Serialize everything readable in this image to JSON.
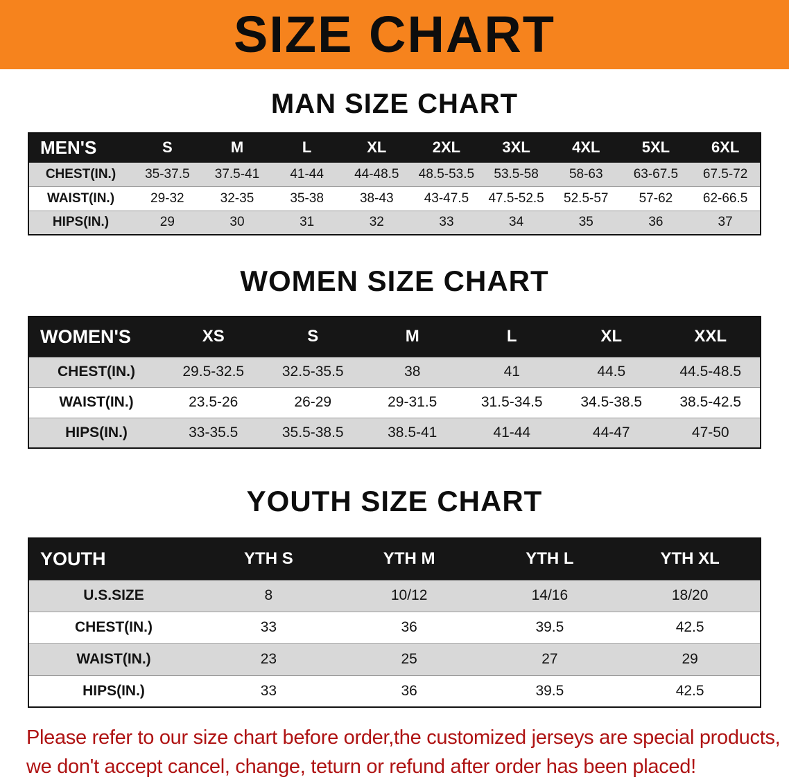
{
  "banner": {
    "title": "SIZE CHART"
  },
  "colors": {
    "banner_bg": "#F6831D",
    "table_header_bg": "#161616",
    "table_row_gray": "#d8d8d8",
    "disclaimer_red": "#AF1313"
  },
  "sections": [
    {
      "heading": "MAN SIZE CHART",
      "table": {
        "header": [
          "MEN'S",
          "S",
          "M",
          "L",
          "XL",
          "2XL",
          "3XL",
          "4XL",
          "5XL",
          "6XL"
        ],
        "rows": [
          [
            "CHEST(IN.)",
            "35-37.5",
            "37.5-41",
            "41-44",
            "44-48.5",
            "48.5-53.5",
            "53.5-58",
            "58-63",
            "63-67.5",
            "67.5-72"
          ],
          [
            "WAIST(IN.)",
            "29-32",
            "32-35",
            "35-38",
            "38-43",
            "43-47.5",
            "47.5-52.5",
            "52.5-57",
            "57-62",
            "62-66.5"
          ],
          [
            "HIPS(IN.)",
            "29",
            "30",
            "31",
            "32",
            "33",
            "34",
            "35",
            "36",
            "37"
          ]
        ]
      }
    },
    {
      "heading": "WOMEN SIZE CHART",
      "table": {
        "header": [
          "WOMEN'S",
          "XS",
          "S",
          "M",
          "L",
          "XL",
          "XXL"
        ],
        "rows": [
          [
            "CHEST(IN.)",
            "29.5-32.5",
            "32.5-35.5",
            "38",
            "41",
            "44.5",
            "44.5-48.5"
          ],
          [
            "WAIST(IN.)",
            "23.5-26",
            "26-29",
            "29-31.5",
            "31.5-34.5",
            "34.5-38.5",
            "38.5-42.5"
          ],
          [
            "HIPS(IN.)",
            "33-35.5",
            "35.5-38.5",
            "38.5-41",
            "41-44",
            "44-47",
            "47-50"
          ]
        ]
      }
    },
    {
      "heading": "YOUTH SIZE CHART",
      "table": {
        "header": [
          "YOUTH",
          "YTH S",
          "YTH M",
          "YTH L",
          "YTH XL"
        ],
        "rows": [
          [
            "U.S.SIZE",
            "8",
            "10/12",
            "14/16",
            "18/20"
          ],
          [
            "CHEST(IN.)",
            "33",
            "36",
            "39.5",
            "42.5"
          ],
          [
            "WAIST(IN.)",
            "23",
            "25",
            "27",
            "29"
          ],
          [
            "HIPS(IN.)",
            "33",
            "36",
            "39.5",
            "42.5"
          ]
        ]
      }
    }
  ],
  "disclaimer": {
    "line1": "Please refer to our size chart before order,the customized jerseys are special products,",
    "line2": "we don't accept cancel, change, teturn or refund after order has been placed!"
  }
}
